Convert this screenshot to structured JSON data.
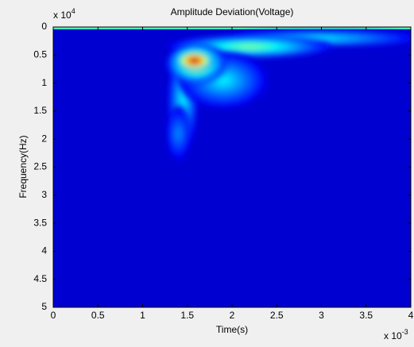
{
  "chart_data": {
    "type": "heatmap",
    "title": "Amplitude Deviation(Voltage)",
    "xlabel": "Time(s)",
    "ylabel": "Frequency(Hz)",
    "x_multiplier": {
      "base": "x 10",
      "exp": "-3"
    },
    "y_multiplier": {
      "base": "x 10",
      "exp": "4"
    },
    "xlim": [
      0,
      4
    ],
    "ylim": [
      0,
      5
    ],
    "y_reversed": true,
    "xticks": [
      0,
      0.5,
      1,
      1.5,
      2,
      2.5,
      3,
      3.5,
      4
    ],
    "yticks": [
      0,
      0.5,
      1,
      1.5,
      2,
      2.5,
      3,
      3.5,
      4,
      4.5,
      5
    ],
    "colormap": "jet",
    "edge_row": {
      "y": 0,
      "z": 0.4
    },
    "spots": [
      {
        "x": 3.0,
        "y": 0.2,
        "sx": 0.7,
        "sy": 0.09,
        "z": 0.3
      },
      {
        "x": 2.2,
        "y": 0.35,
        "sx": 0.55,
        "sy": 0.12,
        "z": 0.45
      },
      {
        "x": 1.45,
        "y": 1.3,
        "sx": 0.1,
        "sy": 0.55,
        "z": 0.3
      },
      {
        "x": 1.4,
        "y": 1.9,
        "sx": 0.08,
        "sy": 0.3,
        "z": 0.2
      },
      {
        "x": 1.9,
        "y": 0.95,
        "sx": 0.3,
        "sy": 0.3,
        "z": 0.3
      },
      {
        "x": 1.6,
        "y": 0.65,
        "sx": 0.2,
        "sy": 0.22,
        "z": 0.6
      },
      {
        "x": 1.58,
        "y": 0.6,
        "sx": 0.14,
        "sy": 0.12,
        "z": 1
      }
    ]
  }
}
